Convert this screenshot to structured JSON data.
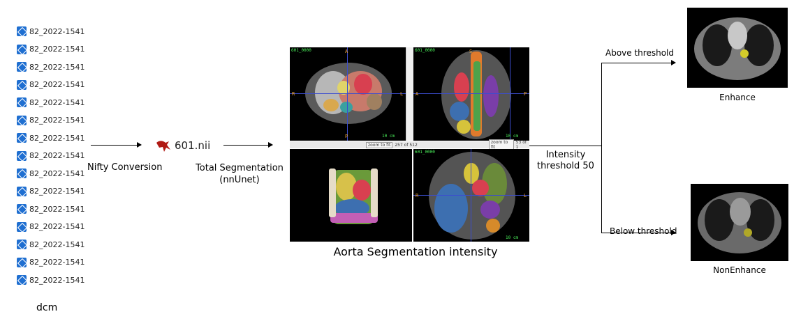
{
  "files": [
    "82_2022-1541",
    "82_2022-1541",
    "82_2022-1541",
    "82_2022-1541",
    "82_2022-1541",
    "82_2022-1541",
    "82_2022-1541",
    "82_2022-1541",
    "82_2022-1541",
    "82_2022-1541",
    "82_2022-1541",
    "82_2022-1541",
    "82_2022-1541",
    "82_2022-1541",
    "82_2022-1541"
  ],
  "dcm_label": "dcm",
  "step1_label": "Nifty Conversion",
  "nii_file": "601.nii",
  "step2_label_line1": "Total Segmentation",
  "step2_label_line2": "(nnUnet)",
  "viewer": {
    "series": "601_0000",
    "axial_orient": {
      "top": "A",
      "bottom": "P",
      "left": "R",
      "right": "L"
    },
    "sagittal_orient": {
      "top": "S",
      "left": "A",
      "right": "P"
    },
    "coronal_orient": {
      "left": "R",
      "right": "L"
    },
    "scale": "10 cm",
    "zoom_button": "zoom to fit",
    "axial_slice": "257 of 512",
    "sagittal_slice": "53 of 1"
  },
  "viewer_caption": "Aorta Segmentation intensity",
  "threshold_line1": "Intensity",
  "threshold_line2": "threshold 50",
  "above_label": "Above threshold",
  "below_label": "Below threshold",
  "enhance_label": "Enhance",
  "nonenhance_label": "NonEnhance",
  "colors": {
    "file_icon": "#1f6fd1",
    "crosshair": "#3b4dcf",
    "orientation": "#f1a63a",
    "overlay_text": "#4af25a"
  }
}
